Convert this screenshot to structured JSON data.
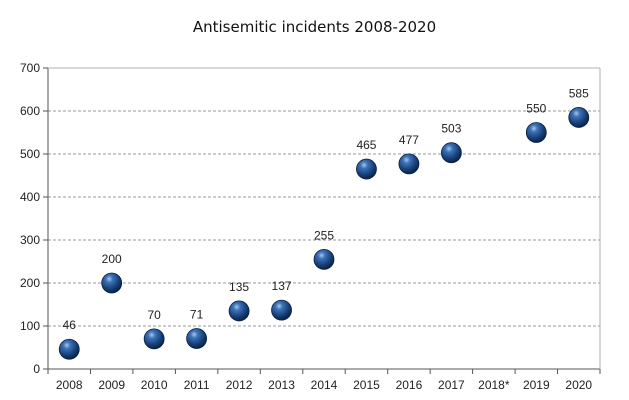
{
  "chart_data": {
    "type": "scatter",
    "title": "Antisemitic incidents 2008-2020",
    "xlabel": "",
    "ylabel": "",
    "categories": [
      "2008",
      "2009",
      "2010",
      "2011",
      "2012",
      "2013",
      "2014",
      "2015",
      "2016",
      "2017",
      "2018*",
      "2019",
      "2020"
    ],
    "values": [
      46,
      200,
      70,
      71,
      135,
      137,
      255,
      465,
      477,
      503,
      null,
      550,
      585
    ],
    "data_labels": [
      "46",
      "200",
      "70",
      "71",
      "135",
      "137",
      "255",
      "465",
      "477",
      "503",
      "",
      "550",
      "585"
    ],
    "y_ticks": [
      "0",
      "100",
      "200",
      "300",
      "400",
      "500",
      "600",
      "700"
    ],
    "ylim": [
      0,
      700
    ],
    "grid": true,
    "legend": "none",
    "marker_color": "#1f4e8c"
  }
}
